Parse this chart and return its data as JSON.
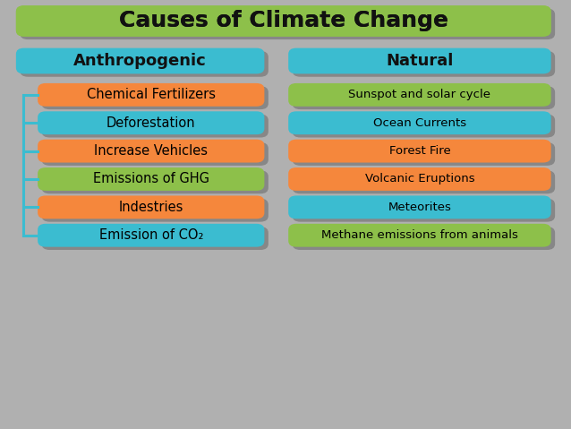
{
  "title": "Causes of Climate Change",
  "title_bg": "#8dc04a",
  "title_color": "#111111",
  "header_bg": "#3bbcd0",
  "header_color": "#111111",
  "left_header": "Anthropogenic",
  "right_header": "Natural",
  "bg_color": "#b0b0b0",
  "left_items": [
    {
      "text": "Chemical Fertilizers",
      "color": "#f5873c"
    },
    {
      "text": "Deforestation",
      "color": "#3bbcd0"
    },
    {
      "text": "Increase Vehicles",
      "color": "#f5873c"
    },
    {
      "text": "Emissions of GHG",
      "color": "#8dc04a"
    },
    {
      "text": "Indestries",
      "color": "#f5873c"
    },
    {
      "text": "Emission of CO₂",
      "color": "#3bbcd0"
    }
  ],
  "right_items": [
    {
      "text": "Sunspot and solar cycle",
      "color": "#8dc04a"
    },
    {
      "text": "Ocean Currents",
      "color": "#3bbcd0"
    },
    {
      "text": "Forest Fire",
      "color": "#f5873c"
    },
    {
      "text": "Volcanic Eruptions",
      "color": "#f5873c"
    },
    {
      "text": "Meteorites",
      "color": "#3bbcd0"
    },
    {
      "text": "Methane emissions from animals",
      "color": "#8dc04a"
    }
  ],
  "figsize": [
    6.38,
    4.79
  ],
  "dpi": 100
}
